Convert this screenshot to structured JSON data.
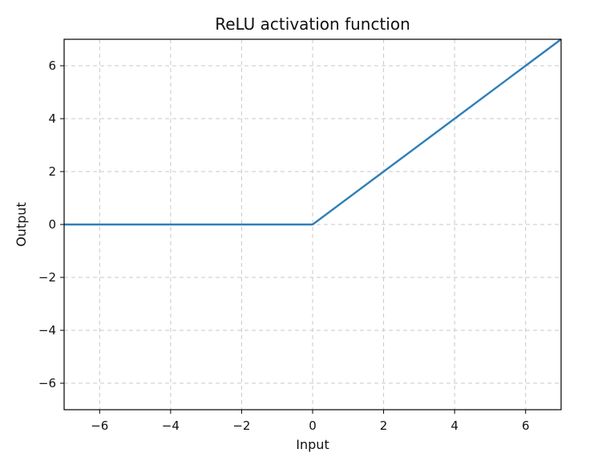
{
  "chart_data": {
    "type": "line",
    "title": "ReLU activation function",
    "xlabel": "Input",
    "ylabel": "Output",
    "xlim": [
      -7,
      7
    ],
    "ylim": [
      -7,
      7
    ],
    "xticks": [
      -6,
      -4,
      -2,
      0,
      2,
      4,
      6
    ],
    "yticks": [
      -6,
      -4,
      -2,
      0,
      2,
      4,
      6
    ],
    "xtick_labels": [
      "−6",
      "−4",
      "−2",
      "0",
      "2",
      "4",
      "6"
    ],
    "ytick_labels": [
      "−6",
      "−4",
      "−2",
      "0",
      "2",
      "4",
      "6"
    ],
    "grid": true,
    "series": [
      {
        "color": "#2f7fb8",
        "x": [
          -7,
          -6,
          -4,
          -2,
          0,
          2,
          4,
          6,
          7
        ],
        "y": [
          0,
          0,
          0,
          0,
          0,
          2,
          4,
          6,
          7
        ]
      }
    ]
  }
}
